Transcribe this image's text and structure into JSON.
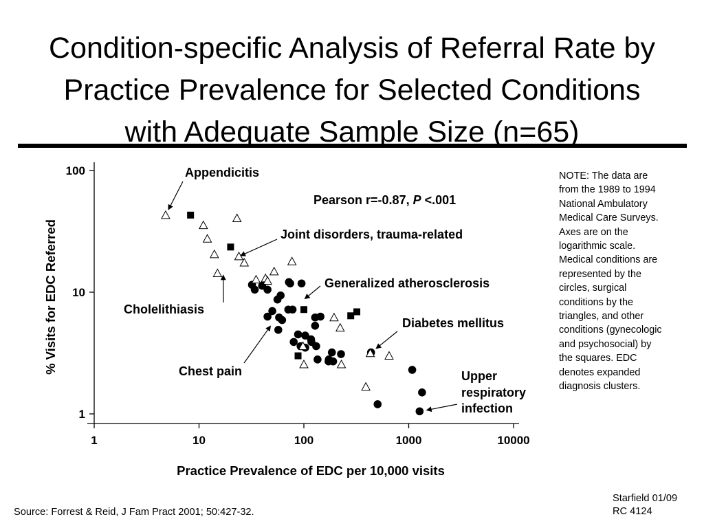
{
  "slide": {
    "title_lines": [
      "Condition-specific Analysis of Referral Rate by",
      "Practice Prevalence for Selected Conditions",
      "with Adequate Sample Size (n=65)"
    ],
    "note": "NOTE: The data are from the 1989 to 1994 National Ambulatory Medical Care Surveys. Axes are on the logarithmic scale. Medical conditions are represented by the circles, surgical conditions by the triangles, and other conditions (gynecologic and psychosocial) by the squares. EDC denotes expanded diagnosis clusters.",
    "source": "Source: Forrest & Reid, J Fam Pract 2001; 50:427-32.",
    "credit_lines": [
      "Starfield 01/09",
      "RC 4124"
    ]
  },
  "chart_data": {
    "type": "scatter",
    "xlabel": "Practice Prevalence of EDC per 10,000 visits",
    "ylabel": "% Visits for EDC Referred",
    "xscale": "log",
    "yscale": "log",
    "xlim": [
      1,
      10000
    ],
    "ylim": [
      1,
      100
    ],
    "xticks": [
      {
        "value": 1,
        "label": "1"
      },
      {
        "value": 10,
        "label": "10"
      },
      {
        "value": 100,
        "label": "100"
      },
      {
        "value": 1000,
        "label": "1000"
      },
      {
        "value": 10000,
        "label": "10000"
      }
    ],
    "yticks": [
      {
        "value": 1,
        "label": "1"
      },
      {
        "value": 10,
        "label": "10"
      },
      {
        "value": 100,
        "label": "100"
      }
    ],
    "grid": false,
    "stat_text": {
      "prefix": "Pearson r=-0.87, ",
      "p_symbol": "P",
      "suffix": " <.001"
    },
    "annotations": [
      {
        "text": "Appendicitis",
        "target": [
          4.8,
          43
        ]
      },
      {
        "text": "Joint disorders, trauma-related",
        "target": [
          22,
          19
        ]
      },
      {
        "text": "Generalized atherosclerosis",
        "target": [
          92,
          8.2
        ]
      },
      {
        "text": "Cholelithiasis",
        "target": [
          17,
          15.5
        ]
      },
      {
        "text": "Chest pain",
        "target": [
          52,
          5.8
        ]
      },
      {
        "text": "Diabetes mellitus",
        "target": [
          440,
          3.2
        ]
      },
      {
        "text": "Upper respiratory infection",
        "target": [
          1300,
          1.05
        ]
      }
    ],
    "series": [
      {
        "marker": "circle",
        "x": [
          32,
          34,
          40,
          45,
          56,
          60,
          71,
          74,
          78,
          95,
          50,
          62,
          72,
          45,
          58,
          57,
          80,
          93,
          103,
          117,
          128,
          144,
          103,
          118,
          88,
          131,
          128,
          173,
          190,
          226,
          135,
          185,
          172,
          437,
          1080,
          1340,
          505,
          1270
        ],
        "y": [
          11.5,
          10.5,
          11.3,
          10.5,
          8.7,
          9.4,
          7.2,
          11.8,
          7.2,
          11.8,
          7.0,
          5.9,
          12.1,
          6.3,
          6.2,
          4.9,
          3.9,
          3.6,
          4.4,
          4.1,
          6.2,
          6.3,
          3.5,
          3.9,
          4.5,
          3.6,
          5.3,
          2.8,
          2.7,
          3.1,
          2.8,
          3.2,
          2.7,
          3.2,
          2.3,
          1.5,
          1.2,
          1.05
        ]
      },
      {
        "marker": "triangle",
        "x": [
          4.8,
          11,
          12,
          14,
          15,
          23,
          24,
          27,
          35,
          43,
          45,
          52,
          77,
          98,
          100,
          194,
          222,
          228,
          390,
          430,
          650
        ],
        "y": [
          43,
          35.5,
          27.5,
          20.5,
          14.3,
          40.5,
          19.7,
          17.5,
          12.7,
          13,
          12.4,
          14.8,
          17.9,
          3.6,
          2.55,
          6.2,
          5.1,
          2.55,
          1.67,
          3.15,
          3.0
        ]
      },
      {
        "marker": "square",
        "x": [
          8.3,
          20,
          88,
          100,
          280,
          320
        ],
        "y": [
          43,
          23.5,
          3.0,
          7.2,
          6.4,
          6.9
        ]
      }
    ]
  }
}
